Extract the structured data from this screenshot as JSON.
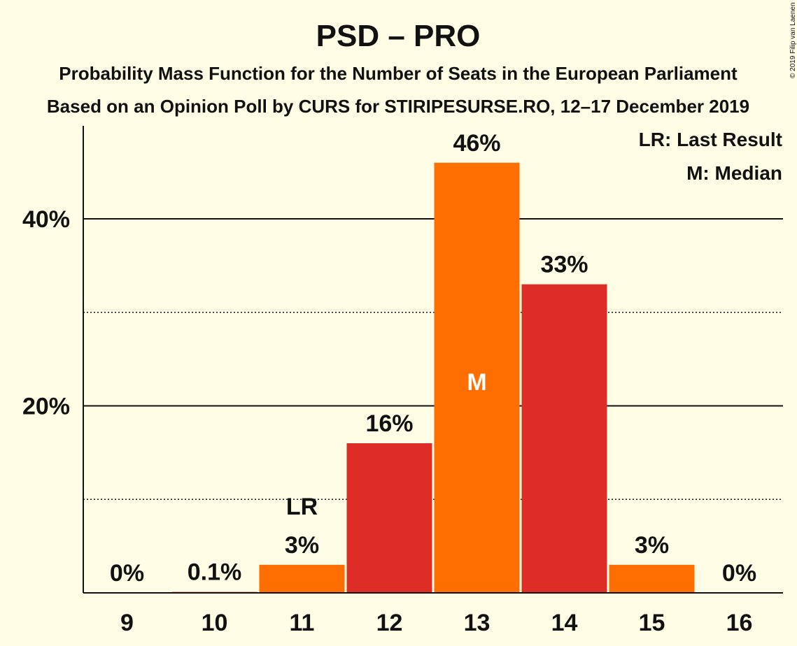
{
  "header": {
    "title": "PSD – PRO",
    "subtitle1": "Probability Mass Function for the Number of Seats in the European Parliament",
    "subtitle2": "Based on an Opinion Poll by CURS for STIRIPESURSE.RO, 12–17 December 2019",
    "copyright": "© 2019 Filip van Laenen"
  },
  "legend": {
    "lr": "LR: Last Result",
    "m": "M: Median"
  },
  "colors": {
    "background": "#fffde6",
    "orange": "#ff6e00",
    "red": "#de2d26"
  },
  "chart_data": {
    "type": "bar",
    "title": "PSD – PRO",
    "categories": [
      "9",
      "10",
      "11",
      "12",
      "13",
      "14",
      "15",
      "16"
    ],
    "values": [
      0,
      0.1,
      3,
      16,
      46,
      33,
      3,
      0
    ],
    "data_labels": [
      "0%",
      "0.1%",
      "3%",
      "16%",
      "46%",
      "33%",
      "3%",
      "0%"
    ],
    "bar_colors": [
      "orange",
      "red",
      "orange",
      "red",
      "orange",
      "red",
      "orange",
      "red"
    ],
    "ylim": [
      0,
      50
    ],
    "yticks": [
      20,
      40
    ],
    "ytick_labels": [
      "20%",
      "40%"
    ],
    "minor_gridlines": [
      10,
      30
    ],
    "grid": true,
    "last_result_category": "11",
    "last_result_label": "LR",
    "median_category": "13",
    "median_label": "M",
    "legend_position": "top-right"
  }
}
